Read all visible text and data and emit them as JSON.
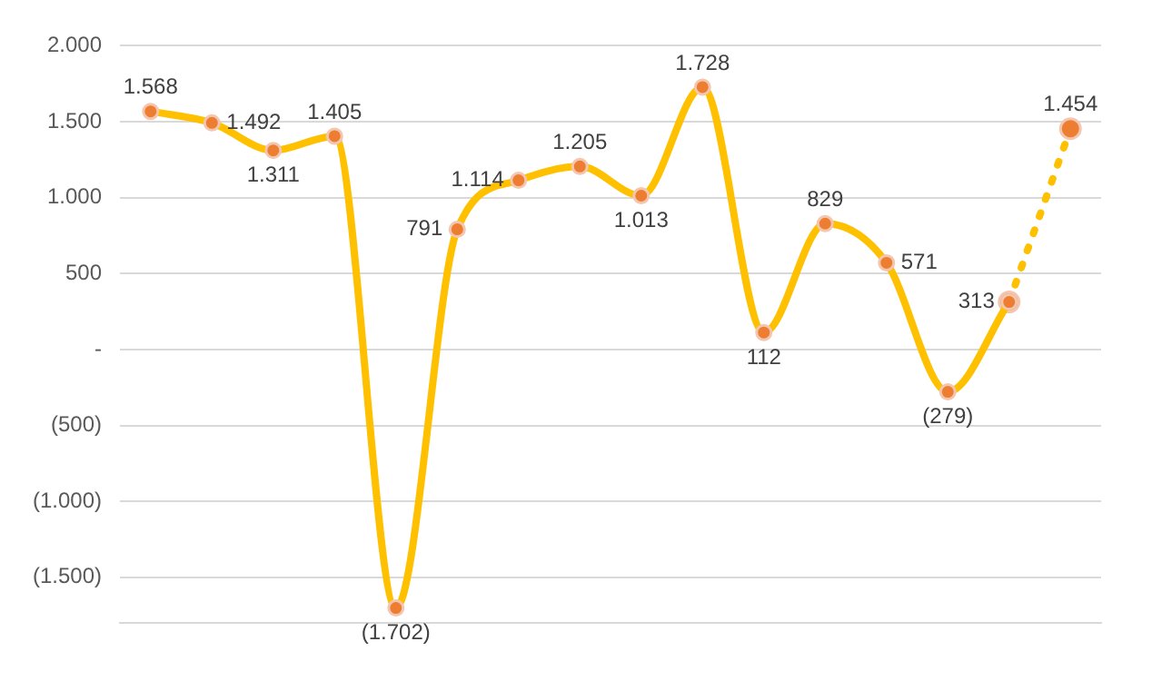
{
  "chart_data": {
    "type": "line",
    "categories": [
      null,
      null,
      null,
      null,
      null,
      null,
      null,
      null,
      null,
      null,
      null,
      null,
      null,
      null,
      null,
      null
    ],
    "series": [
      {
        "color": "#ffc000",
        "line_style": "solid",
        "values": [
          1568,
          1492,
          1311,
          1405,
          -1702,
          791,
          1114,
          1205,
          1013,
          1728,
          112,
          829,
          571,
          -279,
          313,
          null
        ],
        "value_labels": [
          "1.568",
          "1.492",
          "1.311",
          "1.405",
          "(1.702)",
          "791",
          "1.114",
          "1.205",
          "1.013",
          "1.728",
          "112",
          "829",
          "571",
          "(279)",
          "313",
          null
        ]
      },
      {
        "color": "#ffc000",
        "line_style": "dotted",
        "values": [
          null,
          null,
          null,
          null,
          null,
          null,
          null,
          null,
          null,
          null,
          null,
          null,
          null,
          null,
          313,
          1454
        ],
        "value_labels": [
          null,
          null,
          null,
          null,
          null,
          null,
          null,
          null,
          null,
          null,
          null,
          null,
          null,
          null,
          null,
          "1.454"
        ]
      }
    ],
    "marker": "circle",
    "ylim": [
      -1800,
      2000
    ],
    "yticks": [
      {
        "value": -1500,
        "label": "(1.500)"
      },
      {
        "value": -1000,
        "label": "(1.000)"
      },
      {
        "value": -500,
        "label": "(500)"
      },
      {
        "value": 0,
        "label": "-"
      },
      {
        "value": 500,
        "label": "500"
      },
      {
        "value": 1000,
        "label": "1.000"
      },
      {
        "value": 1500,
        "label": "1.500"
      },
      {
        "value": 2000,
        "label": "2.000"
      }
    ],
    "grid": "y",
    "legend": false,
    "tick_labels": "y"
  }
}
